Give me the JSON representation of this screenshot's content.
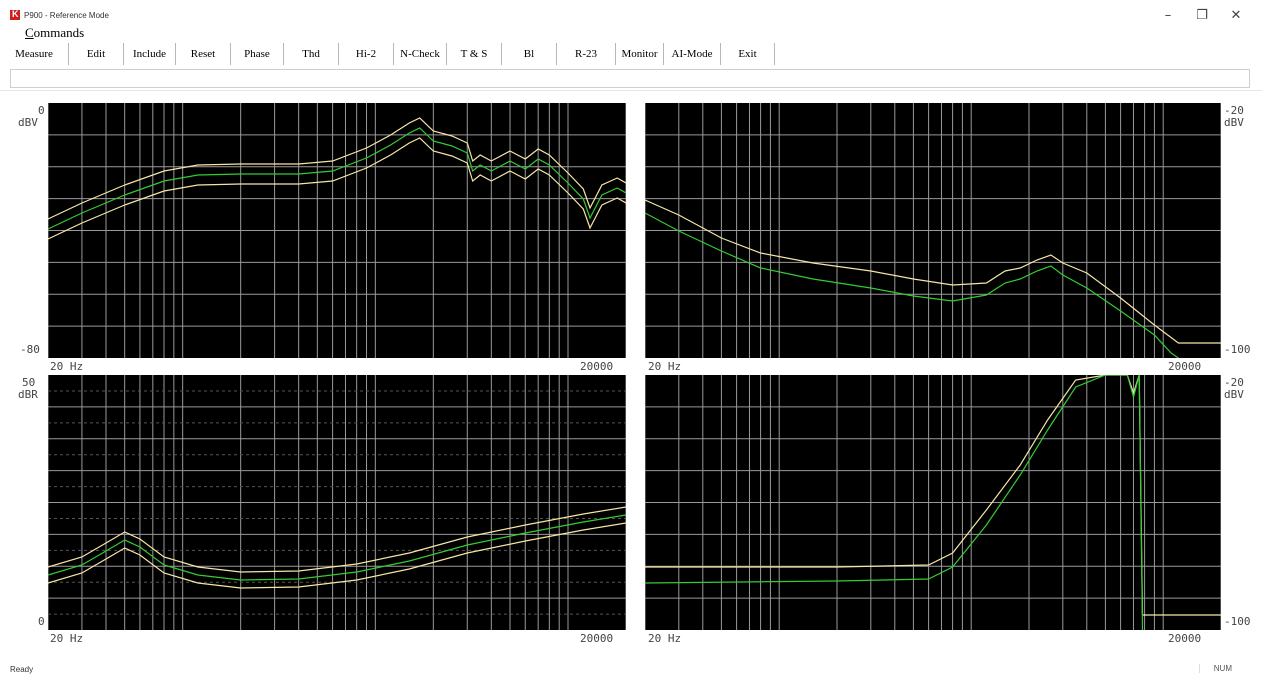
{
  "app": {
    "title": "P900 - Reference Mode",
    "icon": "app-logo-icon"
  },
  "window_controls": {
    "minimize": "–",
    "maximize": "❐",
    "close": "✕"
  },
  "menu": {
    "commands_first": "C",
    "commands_rest": "ommands"
  },
  "toolbar": [
    "Measure",
    "Edit",
    "Include",
    "Reset",
    "Phase",
    "Thd",
    "Hi-2",
    "N-Check",
    "T & S",
    "Bl",
    "R-23",
    "Monitor",
    "AI-Mode",
    "Exit"
  ],
  "status": {
    "left": "Ready",
    "right": "NUM"
  },
  "colors": {
    "plot_bg": "#000000",
    "grid": "#9a9a9a",
    "limit": "#f5e6a8",
    "measured": "#33cc33"
  },
  "plots": [
    {
      "top_label": "0",
      "unit": "dBV",
      "bottom_label": "-80",
      "x_start": "20 Hz",
      "x_end": "20000",
      "label_side": "left"
    },
    {
      "top_label": "-20",
      "unit": "dBV",
      "bottom_label": "-100",
      "x_start": "20 Hz",
      "x_end": "20000",
      "label_side": "right"
    },
    {
      "top_label": "50",
      "unit": "dBR",
      "bottom_label": "0",
      "x_start": "20 Hz",
      "x_end": "20000",
      "label_side": "left"
    },
    {
      "top_label": "-20",
      "unit": "dBV",
      "bottom_label": "-100",
      "x_start": "20 Hz",
      "x_end": "20000",
      "label_side": "right"
    }
  ]
}
